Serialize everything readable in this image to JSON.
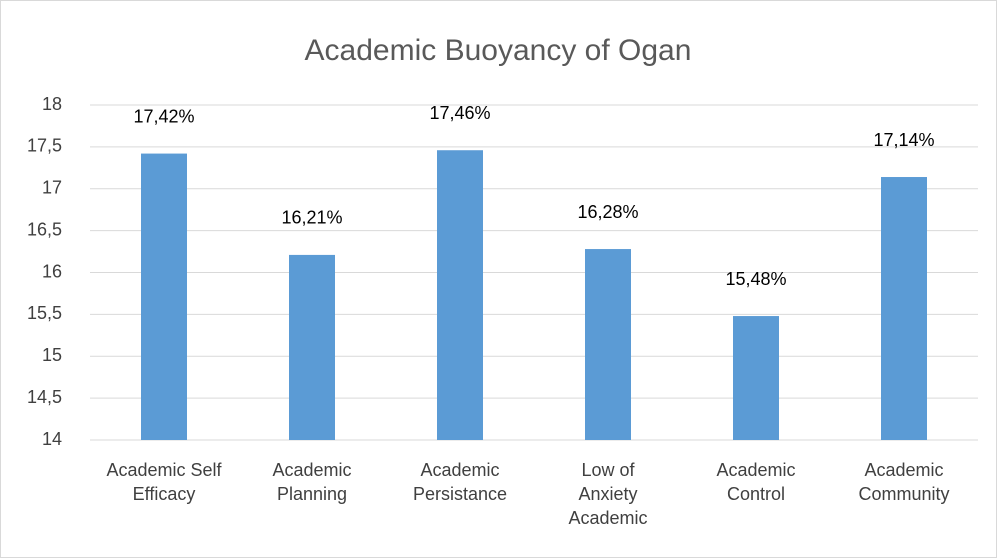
{
  "chart_data": {
    "type": "bar",
    "title": "Academic Buoyancy of Ogan",
    "categories": [
      "Academic Self\nEfficacy",
      "Academic\nPlanning",
      "Academic\nPersistance",
      "Low of\nAnxiety\nAcademic",
      "Academic\nControl",
      "Academic\nCommunity"
    ],
    "values": [
      17.42,
      16.21,
      17.46,
      16.28,
      15.48,
      17.14
    ],
    "value_labels": [
      "17,42%",
      "16,21%",
      "17,46%",
      "16,28%",
      "15,48%",
      "17,14%"
    ],
    "color": "#5b9bd5",
    "ylim": [
      14,
      18
    ],
    "yticks": [
      14,
      {
        "value": 14.5,
        "label": "14,5"
      },
      15,
      {
        "value": 15.5,
        "label": "15,5"
      },
      16,
      {
        "value": 16.5,
        "label": "16,5"
      },
      17,
      {
        "value": 17.5,
        "label": "17,5"
      },
      18
    ],
    "grid": true
  }
}
